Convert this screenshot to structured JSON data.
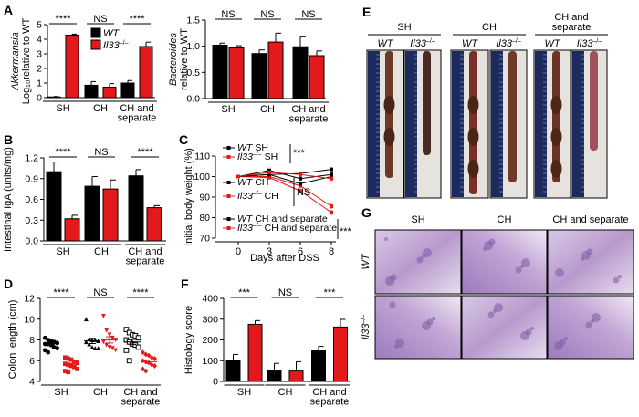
{
  "panel_labels": {
    "A": "A",
    "B": "B",
    "C": "C",
    "D": "D",
    "E": "E",
    "F": "F",
    "G": "G"
  },
  "legend_A": [
    {
      "genotype": "WT",
      "sup": "",
      "color": "#000000"
    },
    {
      "genotype": "Il33",
      "sup": "–/–",
      "color": "#e3191b"
    }
  ],
  "chart_data": [
    {
      "panel": "A",
      "type": "bar",
      "ylabel": [
        "Akkermansia",
        "Log₁₀relative to WT"
      ],
      "ylim": [
        0,
        5
      ],
      "yticks": [
        "0",
        "1",
        "2",
        "3",
        "4",
        "5"
      ],
      "categories": [
        [
          "SH"
        ],
        [
          "CH"
        ],
        [
          "CH and",
          "separate"
        ]
      ],
      "significance": [
        "****",
        "NS",
        "****"
      ],
      "series": [
        {
          "name": "WT",
          "color": "#000000",
          "values": [
            0.05,
            0.85,
            1.0
          ],
          "errors": [
            0.03,
            0.25,
            0.17
          ]
        },
        {
          "name": "Il33–/–",
          "color": "#e3191b",
          "values": [
            4.28,
            0.72,
            3.5
          ],
          "errors": [
            0.07,
            0.24,
            0.3
          ]
        }
      ]
    },
    {
      "panel": "A",
      "type": "bar",
      "ylabel": [
        "Bacteroides",
        "relative to WT"
      ],
      "ylim": [
        0,
        1.5
      ],
      "yticks": [
        "0.0",
        "0.5",
        "1.0",
        "1.5"
      ],
      "categories": [
        [
          "SH"
        ],
        [
          "CH"
        ],
        [
          "CH and",
          "separate"
        ]
      ],
      "significance": [
        "NS",
        "NS",
        "NS"
      ],
      "series": [
        {
          "name": "WT",
          "color": "#000000",
          "values": [
            1.02,
            0.86,
            0.99
          ],
          "errors": [
            0.04,
            0.07,
            0.19
          ]
        },
        {
          "name": "Il33–/–",
          "color": "#e3191b",
          "values": [
            0.97,
            1.08,
            0.82
          ],
          "errors": [
            0.04,
            0.17,
            0.09
          ]
        }
      ]
    },
    {
      "panel": "B",
      "type": "bar",
      "ylabel": [
        "Intestinal IgA (units/mg)"
      ],
      "ylim": [
        0,
        1.2
      ],
      "yticks": [
        "0.0",
        "0.3",
        "0.6",
        "0.9",
        "1.2"
      ],
      "categories": [
        [
          "SH"
        ],
        [
          "CH"
        ],
        [
          "CH and",
          "separate"
        ]
      ],
      "significance": [
        "****",
        "NS",
        "****"
      ],
      "series": [
        {
          "name": "WT",
          "color": "#000000",
          "values": [
            1.0,
            0.79,
            0.94
          ],
          "errors": [
            0.14,
            0.14,
            0.09
          ]
        },
        {
          "name": "Il33–/–",
          "color": "#e3191b",
          "values": [
            0.32,
            0.75,
            0.48
          ],
          "errors": [
            0.05,
            0.13,
            0.03
          ]
        }
      ]
    },
    {
      "panel": "F",
      "type": "bar",
      "ylabel": [
        "Histology score"
      ],
      "ylim": [
        0,
        400
      ],
      "yticks": [
        "0",
        "100",
        "200",
        "300",
        "400"
      ],
      "categories": [
        [
          "SH"
        ],
        [
          "CH"
        ],
        [
          "CH and",
          "separate"
        ]
      ],
      "significance": [
        "***",
        "NS",
        "***"
      ],
      "series": [
        {
          "name": "WT",
          "color": "#000000",
          "values": [
            100,
            52,
            147
          ],
          "errors": [
            30,
            35,
            22
          ]
        },
        {
          "name": "Il33–/–",
          "color": "#e3191b",
          "values": [
            275,
            50,
            262
          ],
          "errors": [
            18,
            45,
            37
          ]
        }
      ]
    },
    {
      "panel": "C",
      "type": "line",
      "ylabel": "Initial body weight (%)",
      "xlabel": "Days after DSS",
      "ylim": [
        70,
        110
      ],
      "yticks": [
        "70",
        "80",
        "90",
        "100",
        "110"
      ],
      "x": [
        0,
        3,
        6,
        8
      ],
      "xticks": [
        "0",
        "3",
        "6",
        "8"
      ],
      "series": [
        {
          "genotype": "WT",
          "sup": "",
          "group": "SH",
          "color": "#000000",
          "values": [
            100,
            103,
            99,
            101
          ],
          "errors": [
            0,
            0.6,
            1,
            1.2
          ]
        },
        {
          "genotype": "Il33",
          "sup": "–/–",
          "group": "SH",
          "color": "#e3191b",
          "values": [
            100,
            100,
            95.5,
            85.5
          ],
          "errors": [
            0,
            0.6,
            1,
            1.2
          ]
        },
        {
          "genotype": "WT",
          "sup": "",
          "group": "CH",
          "color": "#000000",
          "values": [
            100,
            101,
            96.5,
            100
          ],
          "errors": [
            0,
            0.6,
            1,
            1.2
          ]
        },
        {
          "genotype": "Il33",
          "sup": "–/–",
          "group": "CH",
          "color": "#e3191b",
          "values": [
            100,
            99.5,
            93,
            82.5
          ],
          "errors": [
            0,
            0.6,
            1.2,
            1.2
          ]
        },
        {
          "genotype": "WT",
          "sup": "",
          "group": "CH and separate",
          "color": "#000000",
          "values": [
            100,
            101,
            101.5,
            103.5
          ],
          "errors": [
            0,
            0.6,
            1,
            1
          ]
        },
        {
          "genotype": "Il33",
          "sup": "–/–",
          "group": "CH and separate",
          "color": "#e3191b",
          "values": [
            100,
            102,
            101,
            99
          ],
          "errors": [
            0,
            0.6,
            1,
            1.2
          ]
        }
      ],
      "significance": [
        "***",
        "NS",
        "***"
      ]
    },
    {
      "panel": "D",
      "type": "scatter",
      "ylabel": "Colon length (cm)",
      "ylim": [
        4,
        12
      ],
      "yticks": [
        "4",
        "6",
        "8",
        "10",
        "12"
      ],
      "categories": [
        [
          "SH"
        ],
        [
          "CH"
        ],
        [
          "CH and",
          "separate"
        ]
      ],
      "significance": [
        "****",
        "NS",
        "****"
      ],
      "series": [
        {
          "genotype": "WT",
          "group": "SH",
          "color": "#000000",
          "marker": "circle",
          "mean": 7.7,
          "sem": 0.13,
          "values": [
            8.2,
            8.0,
            7.9,
            7.8,
            7.7,
            7.6,
            7.6,
            7.5,
            7.3,
            7.2,
            7.0,
            6.8
          ]
        },
        {
          "genotype": "Il33–/–",
          "group": "SH",
          "color": "#e3191b",
          "marker": "square",
          "mean": 5.6,
          "sem": 0.14,
          "values": [
            6.3,
            6.2,
            6.1,
            5.9,
            5.8,
            5.7,
            5.6,
            5.5,
            5.4,
            5.2,
            5.0,
            4.9
          ]
        },
        {
          "genotype": "WT",
          "group": "CH",
          "color": "#000000",
          "marker": "triangle",
          "mean": 7.9,
          "sem": 0.25,
          "values": [
            10.0,
            8.1,
            8.0,
            8.0,
            7.9,
            7.8,
            7.6,
            7.3,
            7.2,
            7.2
          ]
        },
        {
          "genotype": "Il33–/–",
          "group": "CH",
          "color": "#e3191b",
          "marker": "triangle-down",
          "mean": 8.0,
          "sem": 0.3,
          "values": [
            10.3,
            8.9,
            8.5,
            8.2,
            8.0,
            7.8,
            7.5,
            7.3,
            7.2,
            7.0
          ]
        },
        {
          "genotype": "WT",
          "group": "CH and separate",
          "color": "#000000",
          "marker": "open-square",
          "mean": 7.8,
          "sem": 0.25,
          "values": [
            9.0,
            8.7,
            8.5,
            8.4,
            8.2,
            8.0,
            7.8,
            7.6,
            7.5,
            7.3,
            7.0,
            6.0
          ]
        },
        {
          "genotype": "Il33–/–",
          "group": "CH and separate",
          "color": "#e3191b",
          "marker": "diamond",
          "mean": 5.9,
          "sem": 0.17,
          "values": [
            6.8,
            6.6,
            6.5,
            6.3,
            6.2,
            6.0,
            5.9,
            5.8,
            5.6,
            5.5,
            5.2,
            5.0
          ]
        }
      ]
    }
  ],
  "panel_E": {
    "groups": [
      [
        "SH"
      ],
      [
        "CH"
      ],
      [
        "CH and",
        "separate"
      ]
    ],
    "genotypes": [
      {
        "name": "WT",
        "sup": ""
      },
      {
        "name": "Il33",
        "sup": "–/–"
      }
    ]
  },
  "panel_G": {
    "columns": [
      "SH",
      "CH",
      "CH and separate"
    ],
    "rows": [
      {
        "name": "WT",
        "sup": ""
      },
      {
        "name": "Il33",
        "sup": "–/–"
      }
    ]
  }
}
